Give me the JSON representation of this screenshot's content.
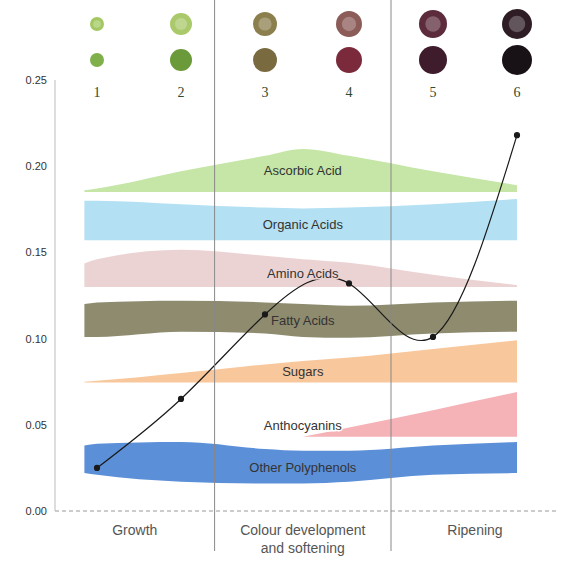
{
  "chart_data": {
    "type": "line",
    "x": [
      1,
      2,
      3,
      4,
      5,
      6
    ],
    "values": [
      0.025,
      0.065,
      0.114,
      0.132,
      0.101,
      0.218
    ],
    "color": "#1a1a1a",
    "marker": "circle",
    "xlim": [
      0.5,
      6.5
    ],
    "ylim": [
      0,
      0.25
    ],
    "yticks": [
      {
        "value": 0,
        "label": "0.00"
      },
      0.05,
      {
        "value": 0.1,
        "label": "0.10"
      },
      0.15,
      {
        "value": 0.2,
        "label": "0.20"
      },
      0.25
    ],
    "grid": false,
    "tick_labels": "y",
    "stages": [
      {
        "label": "Growth",
        "start": 0.5,
        "end": 2.4
      },
      {
        "label": "Colour development and softening",
        "start": 2.4,
        "end": 4.5
      },
      {
        "label": "Ripening",
        "start": 4.5,
        "end": 6.5
      }
    ],
    "bands": {
      "x": [
        0.85,
        1,
        2,
        3,
        3.45,
        4,
        5,
        6
      ],
      "series": [
        {
          "name": "Ascorbic Acid",
          "color": "#c5e6a6",
          "low": [
            0.185,
            0.185,
            0.185,
            0.185,
            0.185,
            0.185,
            0.185,
            0.185
          ],
          "high": [
            0.186,
            0.187,
            0.197,
            0.206,
            0.21,
            0.206,
            0.197,
            0.189
          ]
        },
        {
          "name": "Organic Acids",
          "color": "#b3e0f2",
          "low": [
            0.157,
            0.157,
            0.157,
            0.157,
            0.157,
            0.157,
            0.157,
            0.157
          ],
          "high": [
            0.18,
            0.18,
            0.178,
            0.176,
            0.1755,
            0.176,
            0.178,
            0.181
          ]
        },
        {
          "name": "Amino Acids",
          "color": "#ecd3d3",
          "low": [
            0.13,
            0.13,
            0.13,
            0.13,
            0.13,
            0.13,
            0.13,
            0.13
          ],
          "high": [
            0.1436,
            0.146,
            0.1516,
            0.148,
            0.146,
            0.144,
            0.137,
            0.131
          ]
        },
        {
          "name": "Fatty Acids",
          "color": "#8e8b6f",
          "low": [
            0.101,
            0.101,
            0.104,
            0.103,
            0.101,
            0.1005,
            0.103,
            0.104
          ],
          "high": [
            0.12,
            0.121,
            0.122,
            0.121,
            0.12,
            0.119,
            0.121,
            0.122
          ]
        },
        {
          "name": "Sugars",
          "color": "#f8c79c",
          "low": [
            0.0745,
            0.0745,
            0.0745,
            0.0745,
            0.0745,
            0.0745,
            0.0745,
            0.0745
          ],
          "high": [
            0.075,
            0.0755,
            0.08,
            0.085,
            0.087,
            0.089,
            0.094,
            0.099
          ]
        },
        {
          "name": "Anthocyanins",
          "color": "#f5b3b8",
          "low": [
            null,
            null,
            null,
            null,
            0.043,
            0.043,
            0.043,
            0.043
          ],
          "high": [
            null,
            null,
            null,
            null,
            0.043,
            0.0484,
            0.0585,
            0.069
          ]
        },
        {
          "name": "Other Polyphenols",
          "color": "#5b8fd8",
          "low": [
            0.022,
            0.021,
            0.017,
            0.016,
            0.016,
            0.017,
            0.021,
            0.022
          ],
          "high": [
            0.038,
            0.039,
            0.04,
            0.036,
            0.035,
            0.035,
            0.038,
            0.04
          ]
        }
      ]
    }
  }
}
